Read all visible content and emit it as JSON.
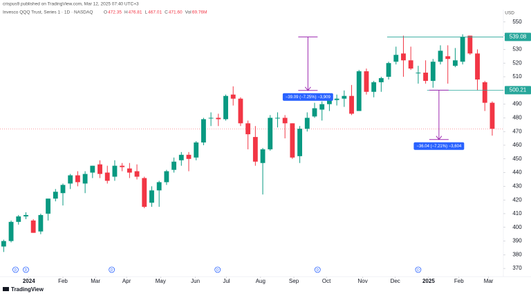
{
  "header": {
    "publisher": "crispus9 published on TradingView.com, Mar 12, 2025 07:40 UTC+3",
    "symbol": "Invesco QQQ Trust, Series 1 · 1D · NASDAQ",
    "legend": [
      {
        "key": "O",
        "text": "472.35"
      },
      {
        "key": "H",
        "text": "476.81"
      },
      {
        "key": "L",
        "text": "467.01"
      },
      {
        "key": "C",
        "text": "471.60"
      },
      {
        "key": "Vol",
        "text": "69.76M"
      }
    ]
  },
  "chart_data": {
    "type": "candlestick",
    "currency": "USD",
    "up_color": "#089981",
    "down_color": "#f23645",
    "grid": false,
    "open": [
      386,
      390,
      404,
      408,
      405,
      397,
      410,
      421,
      425,
      432,
      438,
      432,
      440,
      446,
      440,
      437,
      445,
      443,
      441,
      436,
      418,
      427,
      433,
      442,
      449,
      453,
      451,
      462,
      480,
      480,
      479,
      497,
      494,
      476,
      466,
      447,
      457,
      480,
      480,
      476,
      452,
      472,
      481,
      486,
      490,
      493,
      494,
      496,
      485,
      514,
      499,
      506,
      510,
      521,
      527,
      522,
      513,
      513,
      507,
      521,
      525,
      518,
      521,
      540,
      527,
      506,
      491
    ],
    "high": [
      391,
      405,
      409,
      411,
      406,
      410,
      421,
      428,
      432,
      439,
      441,
      441,
      445,
      449,
      445,
      449,
      447,
      447,
      446,
      437,
      430,
      434,
      442,
      451,
      455,
      455,
      463,
      480,
      484,
      483,
      497,
      503,
      495,
      478,
      474,
      458,
      482,
      484,
      482,
      476,
      474,
      484,
      491,
      492,
      496,
      497,
      500,
      504,
      515,
      516,
      507,
      510,
      521,
      532,
      540,
      532,
      518,
      522,
      523,
      533,
      533,
      531,
      541,
      540,
      530,
      507,
      492
    ],
    "low": [
      382,
      389,
      402,
      406,
      396,
      395,
      405,
      419,
      416,
      428,
      430,
      425,
      436,
      436,
      432,
      434,
      441,
      436,
      435,
      414,
      415,
      415,
      431,
      440,
      445,
      441,
      449,
      460,
      474,
      474,
      478,
      489,
      474,
      457,
      445,
      424,
      456,
      473,
      465,
      450,
      447,
      470,
      480,
      478,
      485,
      489,
      488,
      482,
      485,
      497,
      495,
      499,
      508,
      519,
      510,
      515,
      505,
      505,
      502,
      519,
      505,
      517,
      519,
      526,
      500,
      485,
      467
    ],
    "close": [
      390,
      404,
      408,
      409,
      396,
      409,
      421,
      426,
      431,
      438,
      433,
      439,
      445,
      439,
      434,
      445,
      444,
      440,
      437,
      415,
      427,
      433,
      441,
      448,
      453,
      450,
      462,
      479,
      480,
      479,
      496,
      494,
      476,
      468,
      448,
      457,
      480,
      480,
      476,
      451,
      472,
      480,
      487,
      490,
      493,
      494,
      496,
      483,
      514,
      499,
      506,
      509,
      520,
      526,
      522,
      516,
      513,
      507,
      521,
      529,
      523,
      522,
      539,
      527,
      508,
      491,
      472
    ],
    "xlim": [
      -0.5,
      67.5
    ],
    "xticks": [
      {
        "value": 3.4,
        "label": "2024"
      },
      {
        "value": 8.0,
        "label": "Feb"
      },
      {
        "value": 12.4,
        "label": "Mar"
      },
      {
        "value": 16.6,
        "label": "Apr"
      },
      {
        "value": 21.2,
        "label": "May"
      },
      {
        "value": 25.9,
        "label": "Jun"
      },
      {
        "value": 30.1,
        "label": "Jul"
      },
      {
        "value": 34.7,
        "label": "Aug"
      },
      {
        "value": 39.2,
        "label": "Sep"
      },
      {
        "value": 43.6,
        "label": "Oct"
      },
      {
        "value": 48.5,
        "label": "Nov"
      },
      {
        "value": 52.9,
        "label": "Dec"
      },
      {
        "value": 57.4,
        "label": "2025"
      },
      {
        "value": 61.5,
        "label": "Feb"
      },
      {
        "value": 65.5,
        "label": "Mar"
      }
    ],
    "ylim": [
      364,
      559
    ],
    "yticks": [
      370,
      380,
      390,
      400,
      410,
      420,
      430,
      440,
      450,
      460,
      470,
      480,
      490,
      500,
      510,
      520,
      530,
      540,
      550
    ],
    "levels": [
      {
        "value": 539.08,
        "start": 51.8
      },
      {
        "value": 500.21,
        "start": 57.2
      }
    ],
    "measures": [
      {
        "x": 41.1,
        "from": 539.08,
        "to": 499.99,
        "label": "−39.09 (−7.25%) −3,909"
      },
      {
        "x": 58.8,
        "from": 500.21,
        "to": 464.17,
        "label": "−36.04 (−7.21%) −3,604"
      }
    ],
    "dividend_marker": "D",
    "dividends": [
      1.6,
      3.0,
      14.6,
      28.9,
      42.4,
      56.0
    ]
  },
  "footer": {
    "brand": "TradingView"
  }
}
